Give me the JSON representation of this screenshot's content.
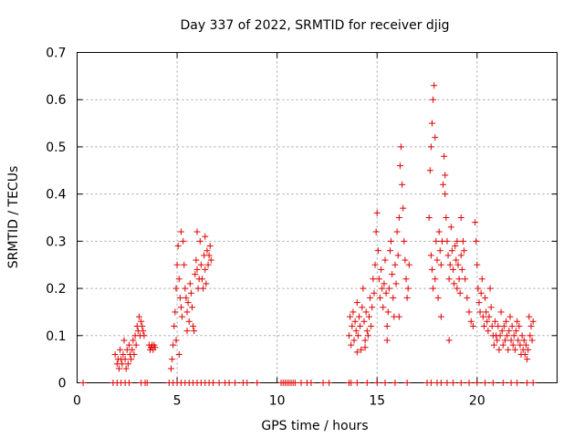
{
  "chart_data": {
    "type": "scatter",
    "title": "Day 337 of 2022, SRMTID for receiver djig",
    "xlabel": "GPS time / hours",
    "ylabel": "SRMTID / TECUs",
    "xlim": [
      0,
      24
    ],
    "ylim": [
      0,
      0.7
    ],
    "xticks": [
      0,
      5,
      10,
      15,
      20
    ],
    "yticks": [
      0,
      0.1,
      0.2,
      0.3,
      0.4,
      0.5,
      0.6,
      0.7
    ],
    "grid": true,
    "marker": "+",
    "color": "#e00000",
    "series": [
      {
        "name": "SRMTID",
        "points": [
          [
            0.3,
            0
          ],
          [
            1.8,
            0
          ],
          [
            2.0,
            0
          ],
          [
            2.2,
            0
          ],
          [
            2.4,
            0
          ],
          [
            2.6,
            0
          ],
          [
            3.2,
            0
          ],
          [
            3.4,
            0
          ],
          [
            3.5,
            0
          ],
          [
            4.6,
            0
          ],
          [
            4.8,
            0
          ],
          [
            5.0,
            0
          ],
          [
            5.2,
            0
          ],
          [
            5.4,
            0
          ],
          [
            5.6,
            0
          ],
          [
            5.8,
            0
          ],
          [
            6.0,
            0
          ],
          [
            6.2,
            0
          ],
          [
            6.4,
            0
          ],
          [
            6.6,
            0
          ],
          [
            6.8,
            0
          ],
          [
            7.1,
            0
          ],
          [
            7.4,
            0
          ],
          [
            7.6,
            0
          ],
          [
            7.9,
            0
          ],
          [
            8.3,
            0
          ],
          [
            8.5,
            0
          ],
          [
            9.0,
            0
          ],
          [
            10.2,
            0
          ],
          [
            10.3,
            0
          ],
          [
            10.4,
            0
          ],
          [
            10.5,
            0
          ],
          [
            10.6,
            0
          ],
          [
            10.7,
            0
          ],
          [
            10.8,
            0
          ],
          [
            10.9,
            0
          ],
          [
            11.2,
            0
          ],
          [
            11.5,
            0
          ],
          [
            11.7,
            0
          ],
          [
            12.3,
            0
          ],
          [
            12.6,
            0
          ],
          [
            13.6,
            0
          ],
          [
            13.7,
            0
          ],
          [
            14.0,
            0
          ],
          [
            14.5,
            0
          ],
          [
            15.0,
            0
          ],
          [
            15.4,
            0
          ],
          [
            15.9,
            0
          ],
          [
            16.5,
            0
          ],
          [
            17.5,
            0
          ],
          [
            17.7,
            0
          ],
          [
            18.0,
            0
          ],
          [
            18.2,
            0
          ],
          [
            18.5,
            0
          ],
          [
            18.8,
            0
          ],
          [
            19.2,
            0
          ],
          [
            19.6,
            0
          ],
          [
            20.0,
            0
          ],
          [
            20.4,
            0
          ],
          [
            20.8,
            0
          ],
          [
            21.3,
            0
          ],
          [
            21.7,
            0
          ],
          [
            22.0,
            0
          ],
          [
            22.5,
            0
          ],
          [
            22.8,
            0
          ],
          [
            1.9,
            0.06
          ],
          [
            2.0,
            0.04
          ],
          [
            2.05,
            0.05
          ],
          [
            2.1,
            0.03
          ],
          [
            2.15,
            0.07
          ],
          [
            2.2,
            0.05
          ],
          [
            2.25,
            0.04
          ],
          [
            2.3,
            0.06
          ],
          [
            2.35,
            0.09
          ],
          [
            2.4,
            0.05
          ],
          [
            2.45,
            0.03
          ],
          [
            2.5,
            0.07
          ],
          [
            2.55,
            0.04
          ],
          [
            2.6,
            0.08
          ],
          [
            2.65,
            0.06
          ],
          [
            2.7,
            0.05
          ],
          [
            2.75,
            0.07
          ],
          [
            2.8,
            0.09
          ],
          [
            2.85,
            0.06
          ],
          [
            2.9,
            0.1
          ],
          [
            2.95,
            0.08
          ],
          [
            3.0,
            0.12
          ],
          [
            3.05,
            0.11
          ],
          [
            3.1,
            0.14
          ],
          [
            3.15,
            0.1
          ],
          [
            3.2,
            0.13
          ],
          [
            3.25,
            0.12
          ],
          [
            3.3,
            0.11
          ],
          [
            3.35,
            0.1
          ],
          [
            3.6,
            0.08
          ],
          [
            3.65,
            0.07
          ],
          [
            3.7,
            0.075
          ],
          [
            3.75,
            0.08
          ],
          [
            3.8,
            0.07
          ],
          [
            3.85,
            0.08
          ],
          [
            3.9,
            0.075
          ],
          [
            4.7,
            0.03
          ],
          [
            4.75,
            0.05
          ],
          [
            4.8,
            0.08
          ],
          [
            4.85,
            0.12
          ],
          [
            4.9,
            0.15
          ],
          [
            4.95,
            0.2
          ],
          [
            5.0,
            0.25
          ],
          [
            5.05,
            0.29
          ],
          [
            5.1,
            0.22
          ],
          [
            5.15,
            0.18
          ],
          [
            5.2,
            0.16
          ],
          [
            5.25,
            0.14
          ],
          [
            5.3,
            0.3
          ],
          [
            5.35,
            0.25
          ],
          [
            5.4,
            0.2
          ],
          [
            5.45,
            0.18
          ],
          [
            5.5,
            0.15
          ],
          [
            5.55,
            0.17
          ],
          [
            5.6,
            0.13
          ],
          [
            5.65,
            0.21
          ],
          [
            5.7,
            0.19
          ],
          [
            5.75,
            0.16
          ],
          [
            5.8,
            0.12
          ],
          [
            5.85,
            0.11
          ],
          [
            5.9,
            0.23
          ],
          [
            5.95,
            0.26
          ],
          [
            6.0,
            0.24
          ],
          [
            6.05,
            0.2
          ],
          [
            6.1,
            0.22
          ],
          [
            6.15,
            0.3
          ],
          [
            6.2,
            0.25
          ],
          [
            6.25,
            0.22
          ],
          [
            6.3,
            0.2
          ],
          [
            6.35,
            0.27
          ],
          [
            6.4,
            0.24
          ],
          [
            6.45,
            0.21
          ],
          [
            6.5,
            0.28
          ],
          [
            6.55,
            0.25
          ],
          [
            6.6,
            0.27
          ],
          [
            6.65,
            0.29
          ],
          [
            6.7,
            0.26
          ],
          [
            5.1,
            0.06
          ],
          [
            4.95,
            0.09
          ],
          [
            5.5,
            0.11
          ],
          [
            6.0,
            0.32
          ],
          [
            5.2,
            0.32
          ],
          [
            6.4,
            0.31
          ],
          [
            13.6,
            0.1
          ],
          [
            13.65,
            0.14
          ],
          [
            13.7,
            0.08
          ],
          [
            13.75,
            0.12
          ],
          [
            13.8,
            0.15
          ],
          [
            13.85,
            0.09
          ],
          [
            13.9,
            0.13
          ],
          [
            13.95,
            0.11
          ],
          [
            14.0,
            0.17
          ],
          [
            14.05,
            0.1
          ],
          [
            14.1,
            0.14
          ],
          [
            14.15,
            0.12
          ],
          [
            14.2,
            0.07
          ],
          [
            14.25,
            0.16
          ],
          [
            14.3,
            0.2
          ],
          [
            14.35,
            0.13
          ],
          [
            14.4,
            0.09
          ],
          [
            14.45,
            0.15
          ],
          [
            14.5,
            0.11
          ],
          [
            14.55,
            0.1
          ],
          [
            14.6,
            0.14
          ],
          [
            14.65,
            0.18
          ],
          [
            14.7,
            0.12
          ],
          [
            14.75,
            0.16
          ],
          [
            14.8,
            0.22
          ],
          [
            14.85,
            0.19
          ],
          [
            14.9,
            0.25
          ],
          [
            14.95,
            0.32
          ],
          [
            15.0,
            0.36
          ],
          [
            15.05,
            0.28
          ],
          [
            15.1,
            0.22
          ],
          [
            15.15,
            0.18
          ],
          [
            15.2,
            0.24
          ],
          [
            15.25,
            0.2
          ],
          [
            15.3,
            0.16
          ],
          [
            15.35,
            0.21
          ],
          [
            15.4,
            0.26
          ],
          [
            15.45,
            0.19
          ],
          [
            15.5,
            0.12
          ],
          [
            15.55,
            0.15
          ],
          [
            15.6,
            0.2
          ],
          [
            15.65,
            0.28
          ],
          [
            15.7,
            0.3
          ],
          [
            15.75,
            0.23
          ],
          [
            15.8,
            0.18
          ],
          [
            15.85,
            0.14
          ],
          [
            15.9,
            0.25
          ],
          [
            15.95,
            0.21
          ],
          [
            16.0,
            0.32
          ],
          [
            16.05,
            0.27
          ],
          [
            16.1,
            0.35
          ],
          [
            16.15,
            0.46
          ],
          [
            16.2,
            0.5
          ],
          [
            16.25,
            0.42
          ],
          [
            16.3,
            0.37
          ],
          [
            16.35,
            0.3
          ],
          [
            16.4,
            0.26
          ],
          [
            16.45,
            0.22
          ],
          [
            16.5,
            0.18
          ],
          [
            16.55,
            0.2
          ],
          [
            16.6,
            0.25
          ],
          [
            14.0,
            0.065
          ],
          [
            15.5,
            0.09
          ],
          [
            16.1,
            0.14
          ],
          [
            14.4,
            0.075
          ],
          [
            17.6,
            0.35
          ],
          [
            17.65,
            0.45
          ],
          [
            17.7,
            0.5
          ],
          [
            17.75,
            0.55
          ],
          [
            17.8,
            0.6
          ],
          [
            17.85,
            0.63
          ],
          [
            17.9,
            0.52
          ],
          [
            17.95,
            0.3
          ],
          [
            17.7,
            0.27
          ],
          [
            17.75,
            0.24
          ],
          [
            17.8,
            0.2
          ],
          [
            17.9,
            0.22
          ],
          [
            18.0,
            0.26
          ],
          [
            18.05,
            0.18
          ],
          [
            18.1,
            0.32
          ],
          [
            18.15,
            0.28
          ],
          [
            18.2,
            0.25
          ],
          [
            18.25,
            0.3
          ],
          [
            18.3,
            0.42
          ],
          [
            18.35,
            0.48
          ],
          [
            18.4,
            0.44
          ],
          [
            18.45,
            0.35
          ],
          [
            18.5,
            0.3
          ],
          [
            18.55,
            0.27
          ],
          [
            18.6,
            0.22
          ],
          [
            18.65,
            0.25
          ],
          [
            18.7,
            0.33
          ],
          [
            18.75,
            0.28
          ],
          [
            18.8,
            0.24
          ],
          [
            18.85,
            0.21
          ],
          [
            18.9,
            0.29
          ],
          [
            18.95,
            0.26
          ],
          [
            19.0,
            0.3
          ],
          [
            19.05,
            0.25
          ],
          [
            19.1,
            0.22
          ],
          [
            19.15,
            0.19
          ],
          [
            19.2,
            0.27
          ],
          [
            19.25,
            0.24
          ],
          [
            19.3,
            0.3
          ],
          [
            19.35,
            0.28
          ],
          [
            19.4,
            0.22
          ],
          [
            19.5,
            0.18
          ],
          [
            19.6,
            0.15
          ],
          [
            19.7,
            0.13
          ],
          [
            19.8,
            0.12
          ],
          [
            19.9,
            0.34
          ],
          [
            19.95,
            0.3
          ],
          [
            20.0,
            0.25
          ],
          [
            20.05,
            0.2
          ],
          [
            20.1,
            0.17
          ],
          [
            20.15,
            0.15
          ],
          [
            20.2,
            0.19
          ],
          [
            20.25,
            0.22
          ],
          [
            20.3,
            0.14
          ],
          [
            20.35,
            0.12
          ],
          [
            20.4,
            0.18
          ],
          [
            20.45,
            0.15
          ],
          [
            20.5,
            0.13
          ],
          [
            20.55,
            0.11
          ],
          [
            20.6,
            0.14
          ],
          [
            20.65,
            0.2
          ],
          [
            20.7,
            0.16
          ],
          [
            20.75,
            0.12
          ],
          [
            20.8,
            0.1
          ],
          [
            20.85,
            0.08
          ],
          [
            20.9,
            0.13
          ],
          [
            20.95,
            0.1
          ],
          [
            21.0,
            0.09
          ],
          [
            21.05,
            0.12
          ],
          [
            21.1,
            0.07
          ],
          [
            21.15,
            0.1
          ],
          [
            21.2,
            0.15
          ],
          [
            21.25,
            0.11
          ],
          [
            21.3,
            0.08
          ],
          [
            21.35,
            0.12
          ],
          [
            21.4,
            0.09
          ],
          [
            21.45,
            0.13
          ],
          [
            21.5,
            0.1
          ],
          [
            21.55,
            0.07
          ],
          [
            21.6,
            0.11
          ],
          [
            21.65,
            0.14
          ],
          [
            21.7,
            0.09
          ],
          [
            21.75,
            0.12
          ],
          [
            21.8,
            0.08
          ],
          [
            21.85,
            0.1
          ],
          [
            21.9,
            0.07
          ],
          [
            21.95,
            0.11
          ],
          [
            22.0,
            0.13
          ],
          [
            22.05,
            0.09
          ],
          [
            22.1,
            0.12
          ],
          [
            22.15,
            0.08
          ],
          [
            22.2,
            0.06
          ],
          [
            22.25,
            0.1
          ],
          [
            22.3,
            0.07
          ],
          [
            22.35,
            0.09
          ],
          [
            22.4,
            0.06
          ],
          [
            22.45,
            0.08
          ],
          [
            22.5,
            0.05
          ],
          [
            22.55,
            0.07
          ],
          [
            22.6,
            0.14
          ],
          [
            22.65,
            0.1
          ],
          [
            22.7,
            0.12
          ],
          [
            22.75,
            0.09
          ],
          [
            22.8,
            0.13
          ],
          [
            18.2,
            0.14
          ],
          [
            18.6,
            0.09
          ],
          [
            19.0,
            0.2
          ],
          [
            19.2,
            0.35
          ],
          [
            18.4,
            0.4
          ]
        ]
      }
    ]
  }
}
